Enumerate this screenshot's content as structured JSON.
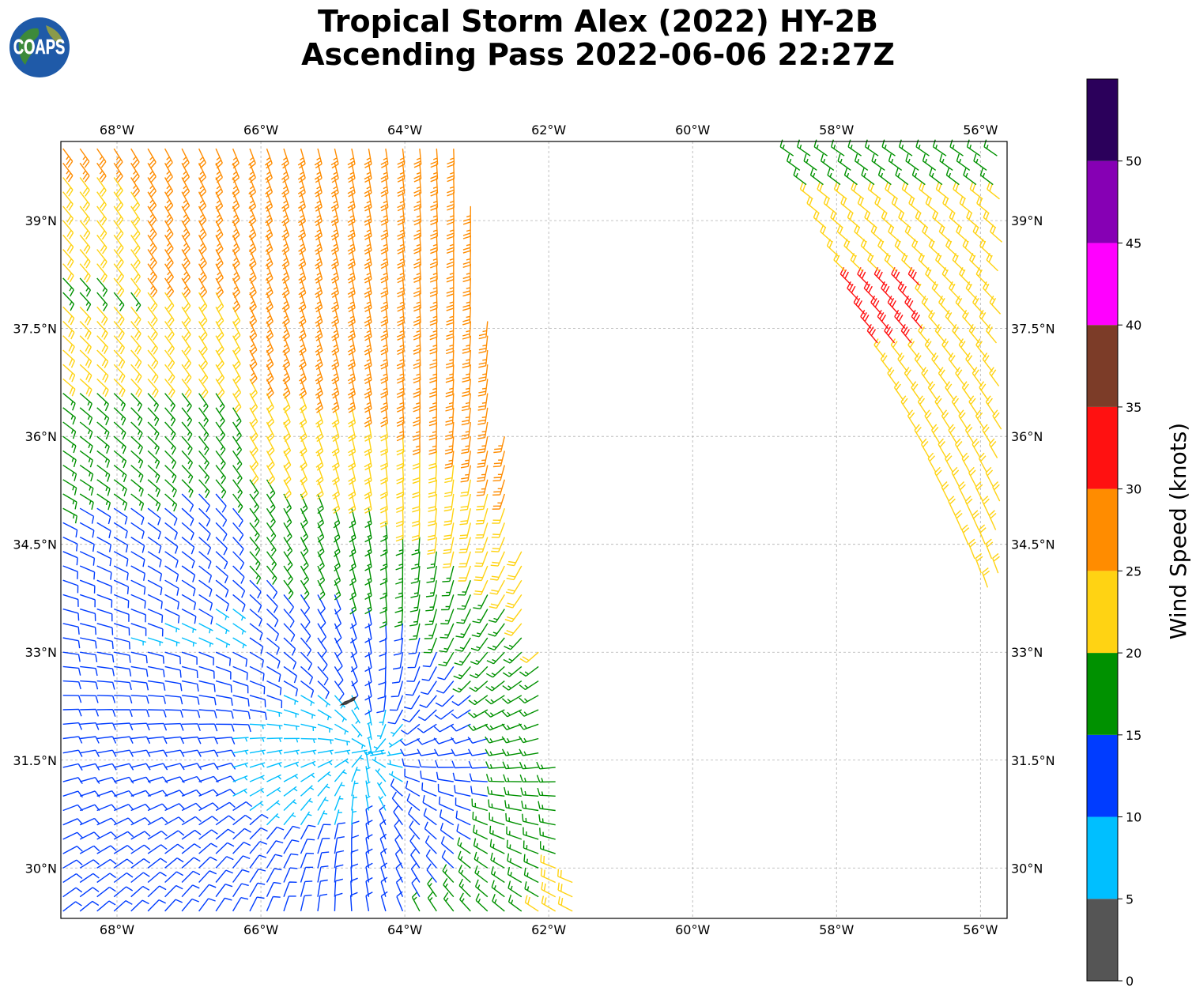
{
  "title": {
    "line1": "Tropical Storm Alex (2022) HY-2B",
    "line2": "Ascending Pass 2022-06-06 22:27Z"
  },
  "logo": {
    "text": "COAPS",
    "icon": "globe-icon"
  },
  "map": {
    "lon_ticks": [
      "68°W",
      "66°W",
      "64°W",
      "62°W",
      "60°W",
      "58°W",
      "56°W"
    ],
    "lat_ticks": [
      "39°N",
      "37.5°N",
      "36°N",
      "34.5°N",
      "33°N",
      "31.5°N",
      "30°N"
    ],
    "lon_values": [
      -68,
      -66,
      -64,
      -62,
      -60,
      -58,
      -56
    ],
    "lat_values": [
      39,
      37.5,
      36,
      34.5,
      33,
      31.5,
      30
    ],
    "lon_range": [
      -68.78,
      -55.63
    ],
    "lat_range": [
      29.3,
      40.1
    ],
    "gridlines": true,
    "feature": "Bermuda landmass near 64.8°W 32.3°N"
  },
  "colorbar": {
    "label": "Wind Speed (knots)",
    "tick_labels": [
      "0",
      "5",
      "10",
      "15",
      "20",
      "25",
      "30",
      "35",
      "40",
      "45",
      "50"
    ],
    "bins": [
      {
        "range": [
          0,
          5
        ],
        "color": "#555555"
      },
      {
        "range": [
          5,
          10
        ],
        "color": "#00bfff"
      },
      {
        "range": [
          10,
          15
        ],
        "color": "#003cff"
      },
      {
        "range": [
          15,
          20
        ],
        "color": "#009100"
      },
      {
        "range": [
          20,
          25
        ],
        "color": "#ffd313"
      },
      {
        "range": [
          25,
          30
        ],
        "color": "#ff8c00"
      },
      {
        "range": [
          30,
          35
        ],
        "color": "#ff1111"
      },
      {
        "range": [
          35,
          40
        ],
        "color": "#7c3c28"
      },
      {
        "range": [
          40,
          45
        ],
        "color": "#ff00ff"
      },
      {
        "range": [
          45,
          50
        ],
        "color": "#8600b4"
      },
      {
        "range": [
          50,
          55
        ],
        "color": "#2b005b"
      }
    ]
  },
  "swaths": [
    {
      "name": "western-swath",
      "lon_span": [
        -68.8,
        -61.5
      ],
      "lat_span": [
        29.3,
        40.1
      ]
    },
    {
      "name": "eastern-swath",
      "lon_span": [
        -58.6,
        -55.6
      ],
      "lat_span": [
        33.8,
        40.1
      ]
    }
  ]
}
